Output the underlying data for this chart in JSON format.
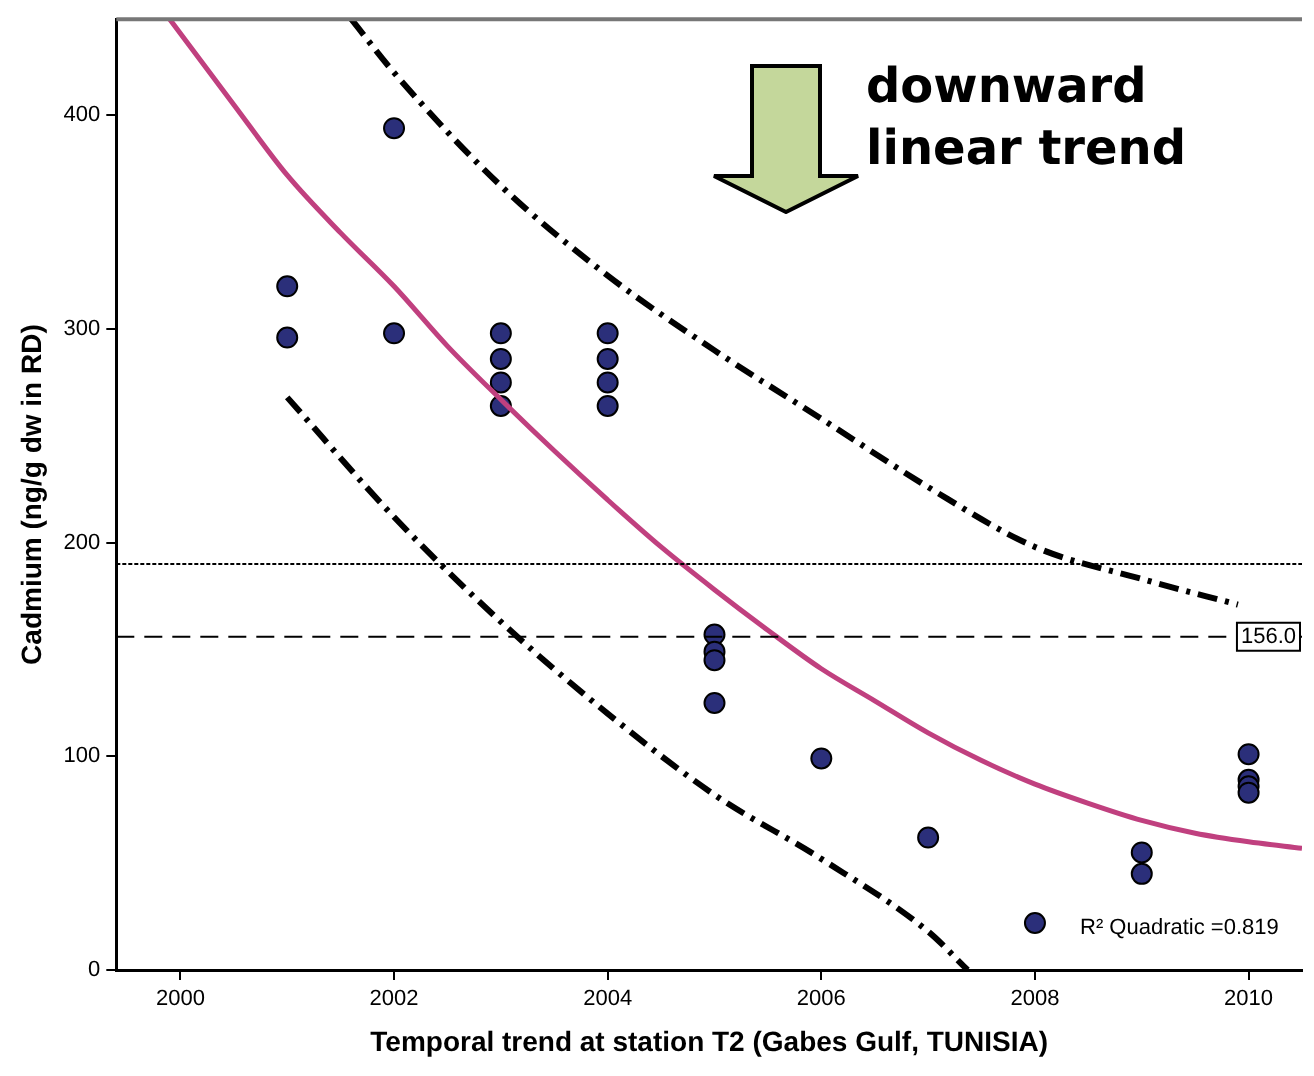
{
  "chart_data": {
    "type": "scatter",
    "xlabel": "Temporal trend at station T2 (Gabes Gulf, TUNISIA)",
    "ylabel": "Cadmium (ng/g dw in RD)",
    "xlim": [
      1999.4,
      2010.5
    ],
    "xticks": [
      2000,
      2002,
      2004,
      2006,
      2008,
      2010
    ],
    "ylim": [
      0,
      445
    ],
    "yticks": [
      0,
      100,
      200,
      300,
      400
    ],
    "grid": false,
    "legend": false,
    "marker": "circle",
    "series": [
      {
        "color": "#2b2f7a",
        "x": [
          2001,
          2001,
          2002,
          2002,
          2003,
          2003,
          2003,
          2003,
          2004,
          2004,
          2004,
          2004,
          2005,
          2005,
          2005,
          2005,
          2006,
          2007,
          2008,
          2009,
          2009,
          2010,
          2010,
          2010,
          2010
        ],
        "values": [
          320,
          296,
          394,
          298,
          298,
          286,
          275,
          264,
          298,
          286,
          275,
          264,
          157,
          149,
          145,
          125,
          99,
          62,
          22,
          55,
          45,
          101,
          89,
          86,
          83
        ]
      },
      {
        "type": "line",
        "color": "#c0407f",
        "marker": "none",
        "line_style": "solid",
        "x": [
          1999.9,
          2000.5,
          2001,
          2001.5,
          2002,
          2002.5,
          2003,
          2003.5,
          2004,
          2004.5,
          2005,
          2005.5,
          2006,
          2006.5,
          2007,
          2007.5,
          2008,
          2008.5,
          2009,
          2009.5,
          2010,
          2010.5
        ],
        "values": [
          445,
          405,
          372,
          345,
          320,
          292,
          267,
          243,
          220,
          198,
          178,
          159,
          141,
          126,
          111,
          98,
          87,
          78,
          70,
          64,
          60,
          57
        ]
      },
      {
        "type": "line",
        "color": "#000000",
        "marker": "none",
        "line_style": "dashed",
        "x": [
          2001.6,
          2002,
          2003,
          2004,
          2005,
          2006,
          2007,
          2008,
          2009,
          2009.9
        ],
        "values": [
          445,
          420,
          367,
          325,
          290,
          258,
          226,
          198,
          183,
          171
        ]
      },
      {
        "type": "line",
        "color": "#000000",
        "marker": "none",
        "line_style": "dashed",
        "x": [
          2001,
          2002,
          2003,
          2004,
          2005,
          2006,
          2007,
          2007.37
        ],
        "values": [
          268,
          212,
          163,
          120,
          82,
          52,
          18,
          0
        ]
      }
    ],
    "ref_lines": [
      {
        "axis": "y",
        "value": 190,
        "line_style": "dotted",
        "color": "#000000"
      },
      {
        "axis": "y",
        "value": 156,
        "label": "156.0",
        "line_style": "dashed",
        "color": "#000000"
      }
    ],
    "annotations": [
      "downward linear trend",
      "R² Quadratic =0.819"
    ]
  }
}
